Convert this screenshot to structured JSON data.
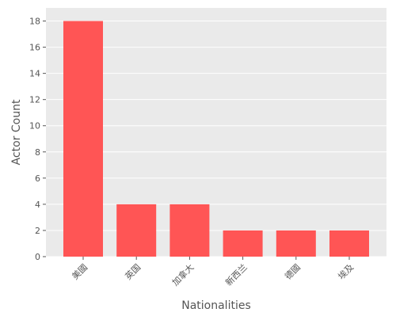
{
  "chart_data": {
    "type": "bar",
    "title": "",
    "xlabel": "Nationalities",
    "ylabel": "Actor Count",
    "categories": [
      "美國",
      "英国",
      "加拿大",
      "新西兰",
      "德國",
      "埃及"
    ],
    "values": [
      18,
      4,
      4,
      2,
      2,
      2
    ],
    "ylim": [
      0,
      19
    ],
    "yticks": [
      0,
      2,
      4,
      6,
      8,
      10,
      12,
      14,
      16,
      18
    ],
    "grid": true,
    "legend": "none",
    "colors": {
      "bar": "#ff5555",
      "plot_background": "#eaeaea",
      "grid": "#ffffff",
      "text": "#555555"
    }
  }
}
